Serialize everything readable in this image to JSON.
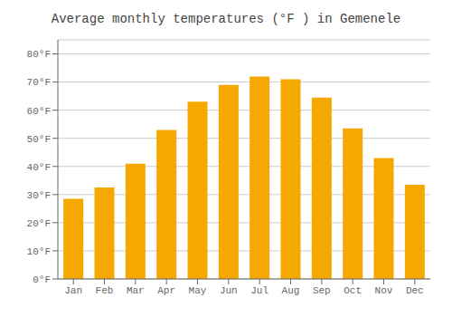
{
  "chart_data": {
    "type": "bar",
    "title": "Average monthly temperatures (°F ) in Gemenele",
    "categories": [
      "Jan",
      "Feb",
      "Mar",
      "Apr",
      "May",
      "Jun",
      "Jul",
      "Aug",
      "Sep",
      "Oct",
      "Nov",
      "Dec"
    ],
    "values": [
      28.5,
      32.5,
      41.0,
      53.0,
      63.0,
      69.0,
      72.0,
      71.0,
      64.5,
      53.5,
      43.0,
      33.5
    ],
    "color": "#F5A800",
    "ylim": [
      0,
      85
    ],
    "yticks": [
      {
        "value": 0,
        "label": "0°F"
      },
      {
        "value": 10,
        "label": "10°F"
      },
      {
        "value": 20,
        "label": "20°F"
      },
      {
        "value": 30,
        "label": "30°F"
      },
      {
        "value": 40,
        "label": "40°F"
      },
      {
        "value": 50,
        "label": "50°F"
      },
      {
        "value": 60,
        "label": "60°F"
      },
      {
        "value": 70,
        "label": "70°F"
      },
      {
        "value": 80,
        "label": "80°F"
      }
    ],
    "grid": true
  }
}
